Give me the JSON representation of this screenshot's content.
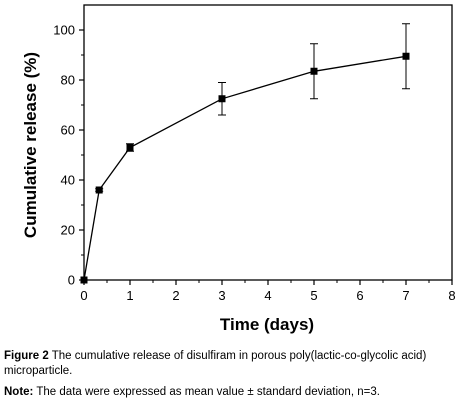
{
  "chart_data": {
    "type": "line",
    "xlabel": "Time (days)",
    "ylabel": "Cumulative release (%)",
    "xlim": [
      0,
      8
    ],
    "ylim": [
      0,
      110
    ],
    "xticks": [
      0,
      1,
      2,
      3,
      4,
      5,
      6,
      7,
      8
    ],
    "yticks": [
      0,
      20,
      40,
      60,
      80,
      100
    ],
    "grid": false,
    "series": [
      {
        "x": [
          0,
          0.33,
          1,
          3,
          5,
          7
        ],
        "y": [
          0,
          36,
          53,
          72.5,
          83.5,
          89.5
        ],
        "error": [
          0,
          0.5,
          1.5,
          6.5,
          11,
          13
        ]
      }
    ],
    "marker": "square",
    "color": "#000000"
  },
  "caption": {
    "label": "Figure 2",
    "text": "The cumulative release of disulfiram in porous poly(lactic-co-glycolic acid) microparticle.",
    "note_label": "Note:",
    "note_text": "The data were expressed as mean value ± standard deviation, n=3."
  }
}
